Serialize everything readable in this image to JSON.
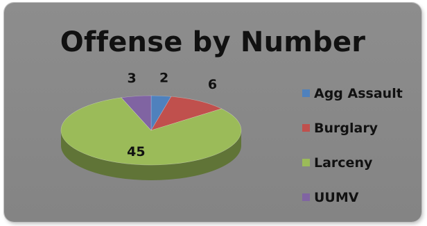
{
  "chart_data": {
    "type": "pie",
    "title": "Offense by Number",
    "categories": [
      "Agg Assault",
      "Burglary",
      "Larceny",
      "UUMV"
    ],
    "values": [
      2,
      6,
      45,
      3
    ],
    "colors": [
      "#4f81bd",
      "#c0504d",
      "#9bbb59",
      "#8064a2"
    ],
    "data_labels": [
      "2",
      "6",
      "45",
      "3"
    ],
    "legend": "right",
    "style": "3d-tilted"
  }
}
